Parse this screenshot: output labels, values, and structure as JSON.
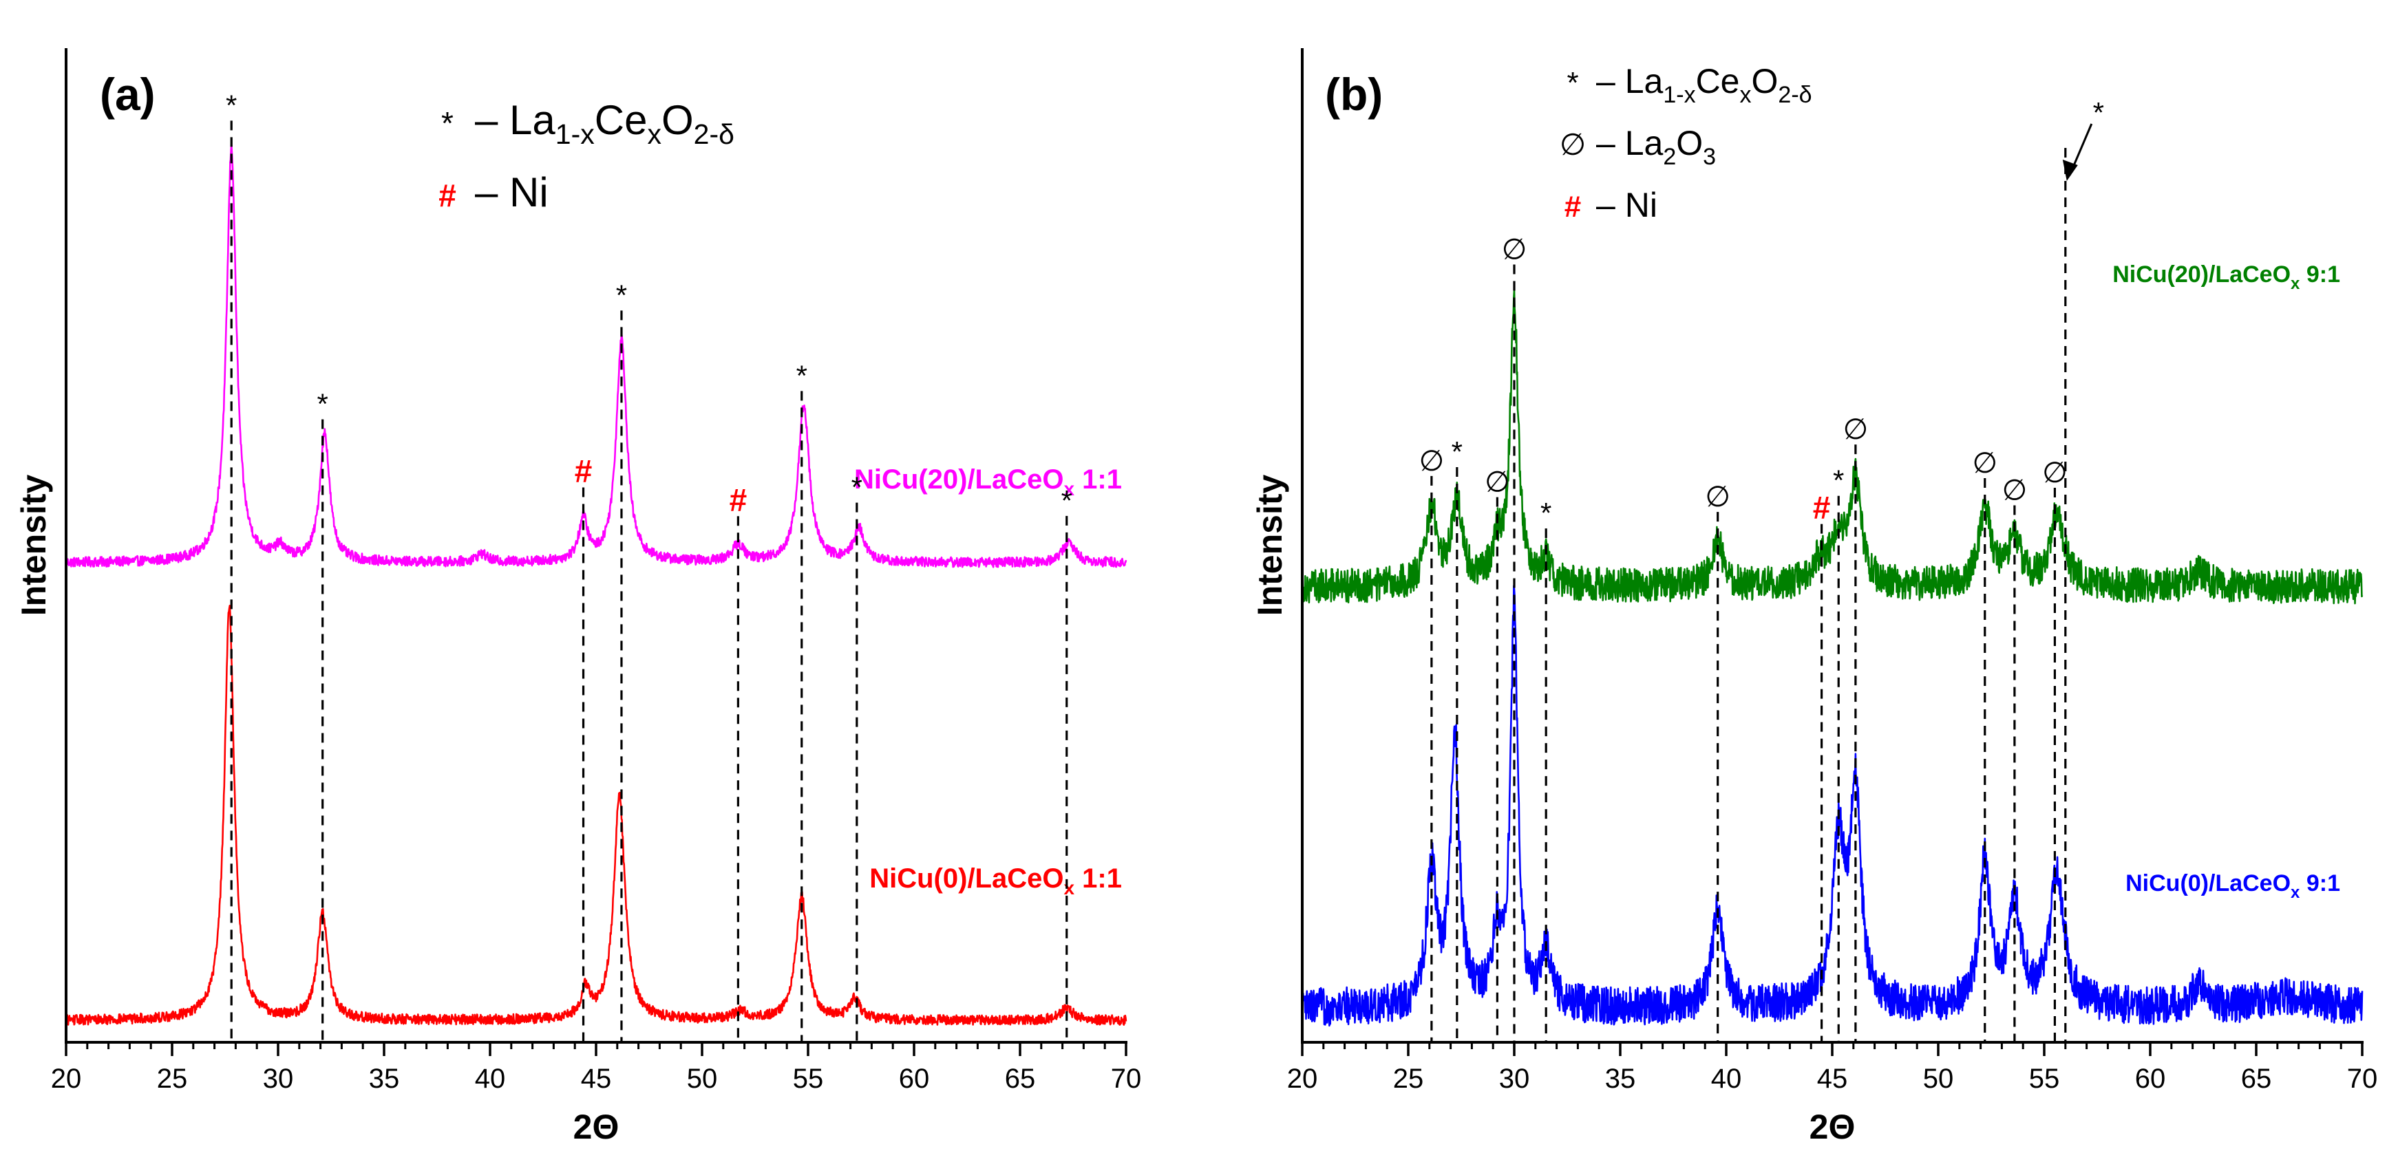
{
  "colors": {
    "axis": "#000000",
    "magenta": "#ff00ff",
    "red": "#ff0000",
    "green": "#008000",
    "blue": "#0000ff",
    "ni_marker": "#ff0000"
  },
  "chart_data": [
    {
      "type": "line",
      "panel": "(a)",
      "xlabel": "2Θ",
      "ylabel": "Intensity",
      "xlim": [
        20,
        70
      ],
      "xticks": [
        "20",
        "25",
        "30",
        "35",
        "40",
        "45",
        "50",
        "55",
        "60",
        "65",
        "70"
      ],
      "yticks": [],
      "legend": {
        "placement": "top-center",
        "entries": [
          {
            "symbol": "*",
            "symbol_color": "#000000",
            "dash": "–",
            "base": "La",
            "sub1": "1-x",
            "mid": "Ce",
            "sub2": "x",
            "end": "O",
            "sub3": "2-δ"
          },
          {
            "symbol": "#",
            "symbol_color": "#ff0000",
            "dash": "–",
            "base": "Ni"
          }
        ]
      },
      "series": [
        {
          "name": "NiCu(20)/LaCeOx 1:1",
          "label": {
            "main": "NiCu(20)/LaCeO",
            "sub": "x",
            "tail": " 1:1"
          },
          "color": "#ff00ff",
          "offset": 1.0,
          "baseline": 0.02,
          "noise": 0.012,
          "peaks": [
            {
              "pos": 27.8,
              "height": 1.0,
              "width": 0.28
            },
            {
              "pos": 30.1,
              "height": 0.03,
              "width": 0.3
            },
            {
              "pos": 32.2,
              "height": 0.31,
              "width": 0.28
            },
            {
              "pos": 39.6,
              "height": 0.02,
              "width": 0.3
            },
            {
              "pos": 44.4,
              "height": 0.1,
              "width": 0.25
            },
            {
              "pos": 46.2,
              "height": 0.54,
              "width": 0.3
            },
            {
              "pos": 51.7,
              "height": 0.04,
              "width": 0.35
            },
            {
              "pos": 54.8,
              "height": 0.38,
              "width": 0.32
            },
            {
              "pos": 57.4,
              "height": 0.08,
              "width": 0.3
            },
            {
              "pos": 67.3,
              "height": 0.05,
              "width": 0.35
            }
          ]
        },
        {
          "name": "NiCu(0)/LaCeOx 1:1",
          "label": {
            "main": "NiCu(0)/LaCeO",
            "sub": "x",
            "tail": " 1:1"
          },
          "color": "#ff0000",
          "offset": 0.0,
          "baseline": 0.025,
          "noise": 0.012,
          "peaks": [
            {
              "pos": 27.7,
              "height": 1.0,
              "width": 0.28
            },
            {
              "pos": 32.1,
              "height": 0.26,
              "width": 0.3
            },
            {
              "pos": 44.5,
              "height": 0.07,
              "width": 0.25
            },
            {
              "pos": 46.1,
              "height": 0.54,
              "width": 0.32
            },
            {
              "pos": 51.8,
              "height": 0.02,
              "width": 0.35
            },
            {
              "pos": 54.7,
              "height": 0.3,
              "width": 0.32
            },
            {
              "pos": 57.2,
              "height": 0.05,
              "width": 0.3
            },
            {
              "pos": 67.2,
              "height": 0.03,
              "width": 0.35
            }
          ]
        }
      ],
      "reference_lines": [
        {
          "pos": 27.8,
          "symbol": "*",
          "label_color": "#000000"
        },
        {
          "pos": 32.1,
          "symbol": "*",
          "label_color": "#000000"
        },
        {
          "pos": 44.4,
          "symbol": "#",
          "label_color": "#ff0000"
        },
        {
          "pos": 46.2,
          "symbol": "*",
          "label_color": "#000000"
        },
        {
          "pos": 51.7,
          "symbol": "#",
          "label_color": "#ff0000"
        },
        {
          "pos": 54.7,
          "symbol": "*",
          "label_color": "#000000"
        },
        {
          "pos": 57.3,
          "symbol": "*",
          "label_color": "#000000"
        },
        {
          "pos": 67.2,
          "symbol": "*",
          "label_color": "#000000"
        }
      ]
    },
    {
      "type": "line",
      "panel": "(b)",
      "xlabel": "2Θ",
      "ylabel": "Intensity",
      "xlim": [
        20,
        70
      ],
      "xticks": [
        "20",
        "25",
        "30",
        "35",
        "40",
        "45",
        "50",
        "55",
        "60",
        "65",
        "70"
      ],
      "yticks": [],
      "legend": {
        "placement": "top-center",
        "entries": [
          {
            "symbol": "*",
            "symbol_color": "#000000",
            "dash": "–",
            "base": "La",
            "sub1": "1-x",
            "mid": "Ce",
            "sub2": "x",
            "end": "O",
            "sub3": "2-δ"
          },
          {
            "symbol": "∅",
            "symbol_color": "#000000",
            "dash": "–",
            "base": "La",
            "sub1": "2",
            "mid": "O",
            "sub2": "3"
          },
          {
            "symbol": "#",
            "symbol_color": "#ff0000",
            "dash": "–",
            "base": "Ni"
          }
        ]
      },
      "arrow_annotation": {
        "symbol": "*",
        "pos": 56.0
      },
      "series": [
        {
          "name": "NiCu(20)/LaCeOx 9:1",
          "label": {
            "main": "NiCu(20)/LaCeO",
            "sub": "x",
            "tail": " 9:1"
          },
          "color": "#008000",
          "offset": 1.0,
          "baseline": 0.05,
          "noise": 0.045,
          "peaks": [
            {
              "pos": 26.1,
              "height": 0.2,
              "width": 0.3
            },
            {
              "pos": 27.3,
              "height": 0.22,
              "width": 0.3
            },
            {
              "pos": 29.2,
              "height": 0.1,
              "width": 0.3
            },
            {
              "pos": 30.0,
              "height": 0.75,
              "width": 0.22
            },
            {
              "pos": 31.5,
              "height": 0.06,
              "width": 0.3
            },
            {
              "pos": 39.6,
              "height": 0.12,
              "width": 0.3
            },
            {
              "pos": 44.4,
              "height": 0.06,
              "width": 0.4
            },
            {
              "pos": 45.3,
              "height": 0.12,
              "width": 0.4
            },
            {
              "pos": 46.1,
              "height": 0.27,
              "width": 0.3
            },
            {
              "pos": 52.2,
              "height": 0.2,
              "width": 0.35
            },
            {
              "pos": 53.6,
              "height": 0.12,
              "width": 0.35
            },
            {
              "pos": 55.6,
              "height": 0.19,
              "width": 0.4
            },
            {
              "pos": 62.3,
              "height": 0.04,
              "width": 0.4
            }
          ]
        },
        {
          "name": "NiCu(0)/LaCeOx 9:1",
          "label": {
            "main": "NiCu(0)/LaCeO",
            "sub": "x",
            "tail": " 9:1"
          },
          "color": "#0000ff",
          "offset": 0.0,
          "baseline": 0.06,
          "noise": 0.05,
          "peaks": [
            {
              "pos": 26.1,
              "height": 0.35,
              "width": 0.28
            },
            {
              "pos": 27.2,
              "height": 0.7,
              "width": 0.25
            },
            {
              "pos": 29.2,
              "height": 0.18,
              "width": 0.28
            },
            {
              "pos": 30.0,
              "height": 1.05,
              "width": 0.2
            },
            {
              "pos": 31.5,
              "height": 0.14,
              "width": 0.3
            },
            {
              "pos": 39.6,
              "height": 0.27,
              "width": 0.3
            },
            {
              "pos": 45.3,
              "height": 0.42,
              "width": 0.35
            },
            {
              "pos": 46.1,
              "height": 0.55,
              "width": 0.3
            },
            {
              "pos": 52.2,
              "height": 0.38,
              "width": 0.3
            },
            {
              "pos": 53.6,
              "height": 0.27,
              "width": 0.35
            },
            {
              "pos": 55.6,
              "height": 0.35,
              "width": 0.4
            },
            {
              "pos": 62.3,
              "height": 0.06,
              "width": 0.35
            },
            {
              "pos": 66.5,
              "height": 0.03,
              "width": 1.5
            }
          ]
        }
      ],
      "reference_lines": [
        {
          "pos": 26.1,
          "symbol": "∅",
          "label_color": "#000000"
        },
        {
          "pos": 27.3,
          "symbol": "*",
          "label_color": "#000000"
        },
        {
          "pos": 29.2,
          "symbol": "∅",
          "label_color": "#000000"
        },
        {
          "pos": 30.0,
          "symbol": "∅",
          "label_color": "#000000"
        },
        {
          "pos": 31.5,
          "symbol": "*",
          "label_color": "#000000"
        },
        {
          "pos": 39.6,
          "symbol": "∅",
          "label_color": "#000000"
        },
        {
          "pos": 44.5,
          "symbol": "#",
          "label_color": "#ff0000"
        },
        {
          "pos": 45.3,
          "symbol": "*",
          "label_color": "#000000"
        },
        {
          "pos": 46.1,
          "symbol": "∅",
          "label_color": "#000000"
        },
        {
          "pos": 52.2,
          "symbol": "∅",
          "label_color": "#000000"
        },
        {
          "pos": 53.6,
          "symbol": "∅",
          "label_color": "#000000"
        },
        {
          "pos": 55.5,
          "symbol": "∅",
          "label_color": "#000000"
        },
        {
          "pos": 56.0,
          "symbol": "",
          "label_color": "#000000"
        }
      ]
    }
  ]
}
